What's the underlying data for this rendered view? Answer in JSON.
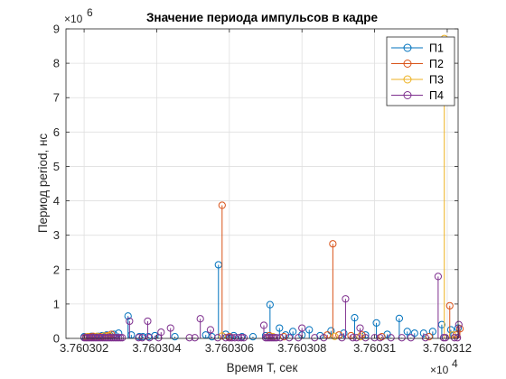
{
  "chart_data": {
    "type": "stem",
    "title": "Значение периода импульсов в кадре",
    "xlabel": "Время T, сек",
    "ylabel": "Период period, нс",
    "x_multiplier": "×10",
    "x_multiplier_exp": "4",
    "y_multiplier": "×10",
    "y_multiplier_exp": "6",
    "xlim": [
      3.7603015,
      3.7603123
    ],
    "ylim": [
      0,
      9
    ],
    "xticks": [
      3.760302,
      3.760304,
      3.760306,
      3.760308,
      3.76031,
      3.760312
    ],
    "xtick_labels": [
      "3.760302",
      "3.760304",
      "3.760306",
      "3.760308",
      "3.76031",
      "3.760312"
    ],
    "yticks": [
      0,
      1,
      2,
      3,
      4,
      5,
      6,
      7,
      8,
      9
    ],
    "ytick_labels": [
      "0",
      "1",
      "2",
      "3",
      "4",
      "5",
      "6",
      "7",
      "8",
      "9"
    ],
    "grid": true,
    "legend_position": "top-right",
    "series": [
      {
        "name": "П1",
        "color": "#0072BD",
        "points": [
          [
            3.760302,
            0.05
          ],
          [
            3.7603021,
            0.05
          ],
          [
            3.7603022,
            0.06
          ],
          [
            3.7603023,
            0.05
          ],
          [
            3.7603024,
            0.06
          ],
          [
            3.7603025,
            0.08
          ],
          [
            3.76030262,
            0.1
          ],
          [
            3.76030272,
            0.08
          ],
          [
            3.76030282,
            0.12
          ],
          [
            3.76030295,
            0.15
          ],
          [
            3.76030321,
            0.65
          ],
          [
            3.7603033,
            0.1
          ],
          [
            3.76030352,
            0.05
          ],
          [
            3.76030362,
            0.05
          ],
          [
            3.76030377,
            0.05
          ],
          [
            3.76030395,
            0.08
          ],
          [
            3.7603045,
            0.05
          ],
          [
            3.76030535,
            0.1
          ],
          [
            3.76030552,
            0.05
          ],
          [
            3.7603057,
            2.14
          ],
          [
            3.7603059,
            0.12
          ],
          [
            3.76030612,
            0.08
          ],
          [
            3.76030635,
            0.05
          ],
          [
            3.76030665,
            0.05
          ],
          [
            3.760307,
            0.08
          ],
          [
            3.76030712,
            0.98
          ],
          [
            3.76030738,
            0.3
          ],
          [
            3.76030755,
            0.1
          ],
          [
            3.76030775,
            0.2
          ],
          [
            3.760308,
            0.1
          ],
          [
            3.7603082,
            0.25
          ],
          [
            3.7603085,
            0.08
          ],
          [
            3.7603088,
            0.22
          ],
          [
            3.76030915,
            0.15
          ],
          [
            3.76030945,
            0.6
          ],
          [
            3.76030975,
            0.1
          ],
          [
            3.76031005,
            0.45
          ],
          [
            3.76031035,
            0.12
          ],
          [
            3.76031068,
            0.58
          ],
          [
            3.7603109,
            0.2
          ],
          [
            3.7603111,
            0.15
          ],
          [
            3.76031135,
            0.15
          ],
          [
            3.7603116,
            0.2
          ],
          [
            3.76031185,
            0.4
          ],
          [
            3.7603121,
            0.25
          ],
          [
            3.7603123,
            0.3
          ]
        ]
      },
      {
        "name": "П2",
        "color": "#D95319",
        "points": [
          [
            3.76030205,
            0.04
          ],
          [
            3.76030215,
            0.05
          ],
          [
            3.76030225,
            0.06
          ],
          [
            3.76030245,
            0.05
          ],
          [
            3.76030265,
            0.08
          ],
          [
            3.76030275,
            0.12
          ],
          [
            3.7603058,
            3.87
          ],
          [
            3.760306,
            0.05
          ],
          [
            3.7603071,
            0.08
          ],
          [
            3.7603075,
            0.05
          ],
          [
            3.7603087,
            0.1
          ],
          [
            3.76030885,
            2.75
          ],
          [
            3.76030902,
            0.1
          ],
          [
            3.76030935,
            0.08
          ],
          [
            3.76030965,
            0.1
          ],
          [
            3.7603102,
            0.05
          ],
          [
            3.7603115,
            0.05
          ],
          [
            3.76031207,
            0.95
          ],
          [
            3.76031225,
            0.1
          ],
          [
            3.76031235,
            0.28
          ]
        ]
      },
      {
        "name": "П3",
        "color": "#EDB120",
        "points": [
          [
            3.7603021,
            0.05
          ],
          [
            3.76030235,
            0.06
          ],
          [
            3.76030255,
            0.07
          ],
          [
            3.7603027,
            0.08
          ],
          [
            3.7603058,
            0.07
          ],
          [
            3.7603072,
            0.05
          ],
          [
            3.7603089,
            0.06
          ],
          [
            3.7603096,
            0.05
          ],
          [
            3.76031192,
            8.72
          ],
          [
            3.76031215,
            0.1
          ]
        ]
      },
      {
        "name": "П4",
        "color": "#7E2F8E",
        "points": [
          [
            3.760302,
            0.02
          ],
          [
            3.76030205,
            0.02
          ],
          [
            3.7603021,
            0.02
          ],
          [
            3.76030215,
            0.02
          ],
          [
            3.7603022,
            0.02
          ],
          [
            3.76030225,
            0.02
          ],
          [
            3.7603023,
            0.02
          ],
          [
            3.76030235,
            0.02
          ],
          [
            3.7603024,
            0.02
          ],
          [
            3.76030245,
            0.02
          ],
          [
            3.7603025,
            0.02
          ],
          [
            3.76030255,
            0.02
          ],
          [
            3.7603026,
            0.02
          ],
          [
            3.76030265,
            0.02
          ],
          [
            3.7603027,
            0.02
          ],
          [
            3.76030275,
            0.02
          ],
          [
            3.7603028,
            0.02
          ],
          [
            3.76030285,
            0.02
          ],
          [
            3.7603029,
            0.02
          ],
          [
            3.76030295,
            0.02
          ],
          [
            3.760303,
            0.02
          ],
          [
            3.76030305,
            0.02
          ],
          [
            3.76030325,
            0.5
          ],
          [
            3.7603035,
            0.02
          ],
          [
            3.7603036,
            0.02
          ],
          [
            3.76030375,
            0.5
          ],
          [
            3.7603038,
            0.02
          ],
          [
            3.76030405,
            0.02
          ],
          [
            3.76030412,
            0.18
          ],
          [
            3.76030438,
            0.3
          ],
          [
            3.7603049,
            0.02
          ],
          [
            3.76030505,
            0.02
          ],
          [
            3.7603052,
            0.57
          ],
          [
            3.76030548,
            0.25
          ],
          [
            3.76030568,
            0.02
          ],
          [
            3.7603059,
            0.02
          ],
          [
            3.760306,
            0.02
          ],
          [
            3.76030607,
            0.02
          ],
          [
            3.76030615,
            0.02
          ],
          [
            3.76030625,
            0.02
          ],
          [
            3.76030633,
            0.02
          ],
          [
            3.7603064,
            0.02
          ],
          [
            3.76030695,
            0.38
          ],
          [
            3.760307,
            0.02
          ],
          [
            3.76030705,
            0.02
          ],
          [
            3.7603071,
            0.02
          ],
          [
            3.76030715,
            0.02
          ],
          [
            3.7603072,
            0.02
          ],
          [
            3.76030725,
            0.02
          ],
          [
            3.7603073,
            0.02
          ],
          [
            3.7603074,
            0.02
          ],
          [
            3.76030765,
            0.02
          ],
          [
            3.7603079,
            0.02
          ],
          [
            3.760308,
            0.3
          ],
          [
            3.76030835,
            0.02
          ],
          [
            3.7603086,
            0.02
          ],
          [
            3.7603091,
            0.02
          ],
          [
            3.7603092,
            1.15
          ],
          [
            3.7603094,
            0.02
          ],
          [
            3.7603095,
            0.02
          ],
          [
            3.7603096,
            0.3
          ],
          [
            3.76030975,
            0.02
          ],
          [
            3.76031,
            0.02
          ],
          [
            3.76031015,
            0.02
          ],
          [
            3.76031045,
            0.02
          ],
          [
            3.76031075,
            0.02
          ],
          [
            3.760311,
            0.02
          ],
          [
            3.7603114,
            0.02
          ],
          [
            3.76031175,
            1.8
          ],
          [
            3.7603119,
            0.02
          ],
          [
            3.76031195,
            0.02
          ],
          [
            3.7603122,
            0.02
          ],
          [
            3.76031228,
            0.02
          ],
          [
            3.76031232,
            0.4
          ]
        ]
      }
    ]
  }
}
